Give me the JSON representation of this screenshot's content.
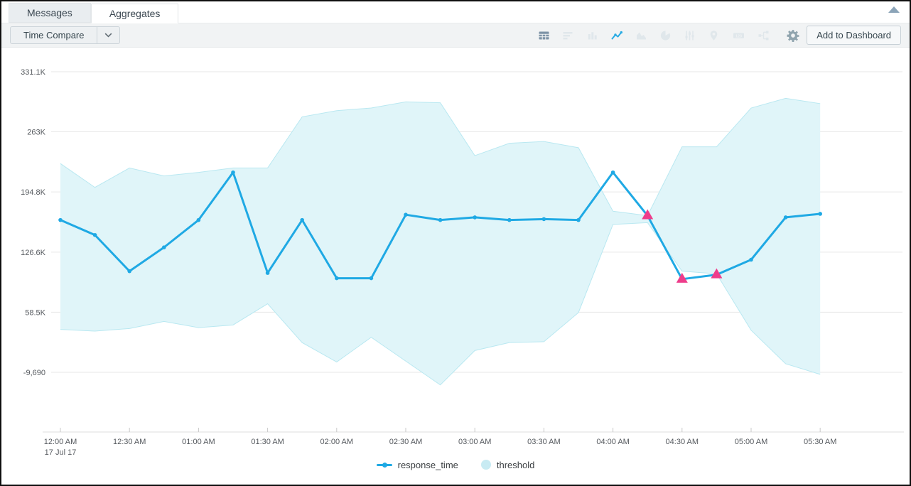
{
  "panel": {
    "collapse_icon": "collapse-up-arrow"
  },
  "tabs": [
    {
      "label": "Messages",
      "active": false
    },
    {
      "label": "Aggregates",
      "active": true
    }
  ],
  "toolbar": {
    "time_compare_label": "Time Compare",
    "add_to_dashboard_label": "Add to Dashboard",
    "chart_type_icons": [
      "table-icon",
      "rows-icon",
      "column-chart-icon",
      "line-chart-icon",
      "area-chart-icon",
      "pie-chart-icon",
      "sliders-icon",
      "map-pin-icon",
      "numeric-display-icon",
      "flow-icon"
    ],
    "selected_chart_type": "line-chart-icon",
    "settings_icon": "gear-icon"
  },
  "colors": {
    "accent_blue": "#1fa9e4",
    "anomaly_pink": "#ee3d8b",
    "threshold_fill": "#e0f5f9",
    "threshold_edge": "#b9e8f1"
  },
  "chart_data": {
    "type": "line",
    "x": [
      "12:00 AM",
      "12:15 AM",
      "12:30 AM",
      "12:45 AM",
      "01:00 AM",
      "01:15 AM",
      "01:30 AM",
      "01:45 AM",
      "02:00 AM",
      "02:15 AM",
      "02:30 AM",
      "02:45 AM",
      "03:00 AM",
      "03:15 AM",
      "03:30 AM",
      "03:45 AM",
      "04:00 AM",
      "04:15 AM",
      "04:30 AM",
      "04:45 AM",
      "05:00 AM",
      "05:15 AM",
      "05:30 AM"
    ],
    "x_sublabel": "17 Jul 17",
    "x_tick_every": 2,
    "y_axis": {
      "values": [
        331100,
        263000,
        194800,
        126600,
        58500,
        -9690
      ],
      "labels": [
        "331.1K",
        "263K",
        "194.8K",
        "126.6K",
        "58.5K",
        "-9,690"
      ]
    },
    "series": [
      {
        "name": "response_time",
        "type": "line",
        "color": "#1fa9e4",
        "values": [
          163000,
          146000,
          105000,
          132000,
          163000,
          217000,
          103000,
          163000,
          97000,
          97000,
          169000,
          163000,
          166000,
          163000,
          164000,
          163000,
          217000,
          168000,
          96000,
          101000,
          118000,
          166000,
          170000
        ]
      },
      {
        "name": "threshold",
        "type": "band",
        "color": "#e0f5f9",
        "edge_color": "#b9e8f1",
        "upper": [
          227000,
          200000,
          222000,
          213000,
          217000,
          222000,
          222000,
          280000,
          287000,
          290000,
          297000,
          296000,
          236000,
          250000,
          252000,
          245000,
          173000,
          168000,
          246000,
          246000,
          290000,
          301000,
          295000
        ],
        "lower": [
          39000,
          37000,
          40000,
          48000,
          41000,
          44000,
          68000,
          24000,
          2000,
          30000,
          3000,
          -24000,
          15000,
          24000,
          25000,
          58000,
          158000,
          160000,
          105000,
          102000,
          38000,
          0,
          -12000
        ]
      }
    ],
    "anomalies": {
      "series": "response_time",
      "x_indices": [
        17,
        18,
        19
      ],
      "marker": "triangle-up",
      "color": "#ee3d8b"
    },
    "legend": [
      "response_time",
      "threshold"
    ],
    "legend_position": "bottom",
    "grid": true
  }
}
